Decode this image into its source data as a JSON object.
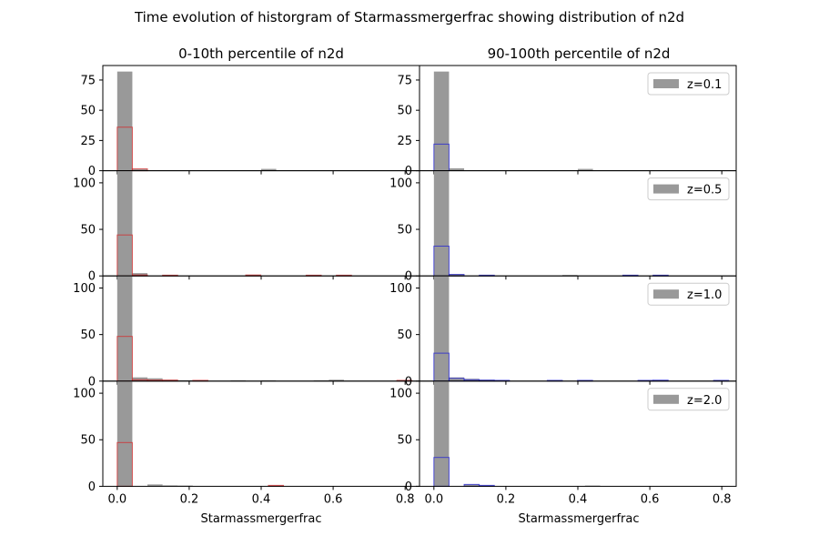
{
  "figure": {
    "suptitle": "Time evolution of historgram of Starmassmergerfrac showing distribution of n2d"
  },
  "chart_data": {
    "type": "histogram-grid",
    "xlabel": "Starmassmergerfrac",
    "xlim": [
      -0.04,
      0.84
    ],
    "xticks": [
      0.0,
      0.2,
      0.4,
      0.6,
      0.8
    ],
    "xtick_labels": [
      "0.0",
      "0.2",
      "0.4",
      "0.6",
      "0.8"
    ],
    "bin_width": 0.042,
    "columns": [
      {
        "title": "0-10th percentile of n2d",
        "outline_color": "#d62728"
      },
      {
        "title": "90-100th percentile of n2d",
        "outline_color": "#1f1fd6"
      }
    ],
    "background_color": "#999999",
    "rows": [
      {
        "legend": "z=0.1",
        "ylim": [
          0,
          87
        ],
        "yticks": [
          0,
          25,
          50,
          75
        ],
        "panels": [
          {
            "background_bins": [
              {
                "x": 0.0,
                "h": 82
              },
              {
                "x": 0.042,
                "h": 1.5
              },
              {
                "x": 0.4,
                "h": 1.5
              }
            ],
            "outline_bins": [
              {
                "x": 0.0,
                "h": 36
              },
              {
                "x": 0.042,
                "h": 1.5
              }
            ]
          },
          {
            "background_bins": [
              {
                "x": 0.0,
                "h": 82
              },
              {
                "x": 0.042,
                "h": 2
              },
              {
                "x": 0.4,
                "h": 1.5
              }
            ],
            "outline_bins": [
              {
                "x": 0.0,
                "h": 22
              }
            ]
          }
        ]
      },
      {
        "legend": "z=0.5",
        "ylim": [
          0,
          113
        ],
        "yticks": [
          0,
          50,
          100
        ],
        "panels": [
          {
            "background_bins": [
              {
                "x": 0.0,
                "h": 113
              },
              {
                "x": 0.042,
                "h": 3
              },
              {
                "x": 0.126,
                "h": 0.8
              },
              {
                "x": 0.357,
                "h": 1
              },
              {
                "x": 0.525,
                "h": 0.8
              },
              {
                "x": 0.609,
                "h": 0.8
              }
            ],
            "outline_bins": [
              {
                "x": 0.0,
                "h": 44
              },
              {
                "x": 0.042,
                "h": 1
              },
              {
                "x": 0.126,
                "h": 0.8
              },
              {
                "x": 0.357,
                "h": 1
              },
              {
                "x": 0.525,
                "h": 0.8
              },
              {
                "x": 0.609,
                "h": 0.8
              }
            ]
          },
          {
            "background_bins": [
              {
                "x": 0.0,
                "h": 113
              },
              {
                "x": 0.042,
                "h": 2
              },
              {
                "x": 0.126,
                "h": 0.8
              },
              {
                "x": 0.357,
                "h": 1
              },
              {
                "x": 0.525,
                "h": 0.8
              },
              {
                "x": 0.609,
                "h": 0.8
              }
            ],
            "outline_bins": [
              {
                "x": 0.0,
                "h": 32
              },
              {
                "x": 0.042,
                "h": 1.5
              },
              {
                "x": 0.126,
                "h": 0.8
              },
              {
                "x": 0.525,
                "h": 0.8
              },
              {
                "x": 0.609,
                "h": 0.8
              }
            ]
          }
        ]
      },
      {
        "legend": "z=1.0",
        "ylim": [
          0,
          113
        ],
        "yticks": [
          0,
          50,
          100
        ],
        "panels": [
          {
            "background_bins": [
              {
                "x": 0.0,
                "h": 113
              },
              {
                "x": 0.042,
                "h": 4
              },
              {
                "x": 0.084,
                "h": 3
              },
              {
                "x": 0.126,
                "h": 1.5
              },
              {
                "x": 0.168,
                "h": 1
              },
              {
                "x": 0.21,
                "h": 1
              },
              {
                "x": 0.315,
                "h": 0.8
              },
              {
                "x": 0.399,
                "h": 0.8
              },
              {
                "x": 0.546,
                "h": 0.8
              },
              {
                "x": 0.588,
                "h": 1.5
              },
              {
                "x": 0.777,
                "h": 0.8
              }
            ],
            "outline_bins": [
              {
                "x": 0.0,
                "h": 48
              },
              {
                "x": 0.042,
                "h": 1.5
              },
              {
                "x": 0.084,
                "h": 1
              },
              {
                "x": 0.126,
                "h": 1
              },
              {
                "x": 0.21,
                "h": 0.8
              },
              {
                "x": 0.777,
                "h": 0.8
              }
            ]
          },
          {
            "background_bins": [
              {
                "x": 0.0,
                "h": 113
              },
              {
                "x": 0.042,
                "h": 4
              },
              {
                "x": 0.084,
                "h": 2.5
              },
              {
                "x": 0.126,
                "h": 1.5
              },
              {
                "x": 0.168,
                "h": 1
              },
              {
                "x": 0.315,
                "h": 0.8
              },
              {
                "x": 0.399,
                "h": 0.8
              },
              {
                "x": 0.567,
                "h": 0.8
              },
              {
                "x": 0.609,
                "h": 1
              },
              {
                "x": 0.777,
                "h": 0.8
              }
            ],
            "outline_bins": [
              {
                "x": 0.0,
                "h": 30
              },
              {
                "x": 0.042,
                "h": 3
              },
              {
                "x": 0.084,
                "h": 1.5
              },
              {
                "x": 0.126,
                "h": 1
              },
              {
                "x": 0.168,
                "h": 0.8
              },
              {
                "x": 0.315,
                "h": 0.8
              },
              {
                "x": 0.399,
                "h": 0.8
              },
              {
                "x": 0.567,
                "h": 0.8
              },
              {
                "x": 0.609,
                "h": 1
              },
              {
                "x": 0.777,
                "h": 0.8
              }
            ]
          }
        ]
      },
      {
        "legend": "z=2.0",
        "ylim": [
          0,
          113
        ],
        "yticks": [
          0,
          50,
          100
        ],
        "panels": [
          {
            "background_bins": [
              {
                "x": 0.0,
                "h": 113
              },
              {
                "x": 0.084,
                "h": 2
              },
              {
                "x": 0.126,
                "h": 1
              },
              {
                "x": 0.168,
                "h": 0.8
              },
              {
                "x": 0.42,
                "h": 0.8
              }
            ],
            "outline_bins": [
              {
                "x": 0.0,
                "h": 47
              },
              {
                "x": 0.42,
                "h": 1
              }
            ]
          },
          {
            "background_bins": [
              {
                "x": 0.0,
                "h": 113
              },
              {
                "x": 0.084,
                "h": 2
              },
              {
                "x": 0.126,
                "h": 1
              },
              {
                "x": 0.42,
                "h": 0.8
              }
            ],
            "outline_bins": [
              {
                "x": 0.0,
                "h": 31
              },
              {
                "x": 0.084,
                "h": 2
              },
              {
                "x": 0.126,
                "h": 1
              }
            ]
          }
        ]
      }
    ]
  }
}
